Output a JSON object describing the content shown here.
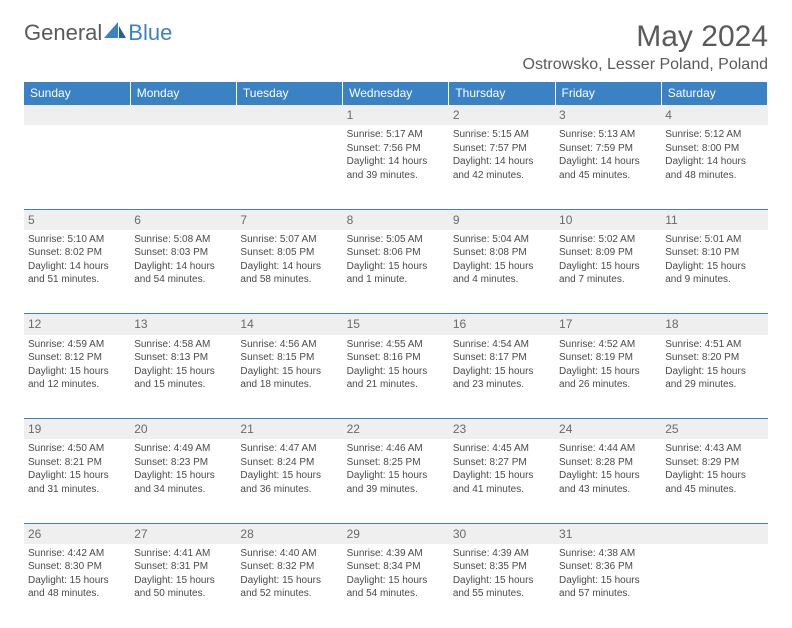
{
  "logo": {
    "word1": "General",
    "word2": "Blue"
  },
  "title": "May 2024",
  "location": "Ostrowsko, Lesser Poland, Poland",
  "colors": {
    "header_bg": "#3b82c4",
    "header_text": "#ffffff",
    "daynum_bg": "#efefef",
    "border": "#3b82c4",
    "body_text": "#4a4a4a",
    "title_text": "#5a5a5a"
  },
  "days_of_week": [
    "Sunday",
    "Monday",
    "Tuesday",
    "Wednesday",
    "Thursday",
    "Friday",
    "Saturday"
  ],
  "weeks": [
    [
      null,
      null,
      null,
      {
        "n": "1",
        "sunrise": "Sunrise: 5:17 AM",
        "sunset": "Sunset: 7:56 PM",
        "daylight": "Daylight: 14 hours and 39 minutes."
      },
      {
        "n": "2",
        "sunrise": "Sunrise: 5:15 AM",
        "sunset": "Sunset: 7:57 PM",
        "daylight": "Daylight: 14 hours and 42 minutes."
      },
      {
        "n": "3",
        "sunrise": "Sunrise: 5:13 AM",
        "sunset": "Sunset: 7:59 PM",
        "daylight": "Daylight: 14 hours and 45 minutes."
      },
      {
        "n": "4",
        "sunrise": "Sunrise: 5:12 AM",
        "sunset": "Sunset: 8:00 PM",
        "daylight": "Daylight: 14 hours and 48 minutes."
      }
    ],
    [
      {
        "n": "5",
        "sunrise": "Sunrise: 5:10 AM",
        "sunset": "Sunset: 8:02 PM",
        "daylight": "Daylight: 14 hours and 51 minutes."
      },
      {
        "n": "6",
        "sunrise": "Sunrise: 5:08 AM",
        "sunset": "Sunset: 8:03 PM",
        "daylight": "Daylight: 14 hours and 54 minutes."
      },
      {
        "n": "7",
        "sunrise": "Sunrise: 5:07 AM",
        "sunset": "Sunset: 8:05 PM",
        "daylight": "Daylight: 14 hours and 58 minutes."
      },
      {
        "n": "8",
        "sunrise": "Sunrise: 5:05 AM",
        "sunset": "Sunset: 8:06 PM",
        "daylight": "Daylight: 15 hours and 1 minute."
      },
      {
        "n": "9",
        "sunrise": "Sunrise: 5:04 AM",
        "sunset": "Sunset: 8:08 PM",
        "daylight": "Daylight: 15 hours and 4 minutes."
      },
      {
        "n": "10",
        "sunrise": "Sunrise: 5:02 AM",
        "sunset": "Sunset: 8:09 PM",
        "daylight": "Daylight: 15 hours and 7 minutes."
      },
      {
        "n": "11",
        "sunrise": "Sunrise: 5:01 AM",
        "sunset": "Sunset: 8:10 PM",
        "daylight": "Daylight: 15 hours and 9 minutes."
      }
    ],
    [
      {
        "n": "12",
        "sunrise": "Sunrise: 4:59 AM",
        "sunset": "Sunset: 8:12 PM",
        "daylight": "Daylight: 15 hours and 12 minutes."
      },
      {
        "n": "13",
        "sunrise": "Sunrise: 4:58 AM",
        "sunset": "Sunset: 8:13 PM",
        "daylight": "Daylight: 15 hours and 15 minutes."
      },
      {
        "n": "14",
        "sunrise": "Sunrise: 4:56 AM",
        "sunset": "Sunset: 8:15 PM",
        "daylight": "Daylight: 15 hours and 18 minutes."
      },
      {
        "n": "15",
        "sunrise": "Sunrise: 4:55 AM",
        "sunset": "Sunset: 8:16 PM",
        "daylight": "Daylight: 15 hours and 21 minutes."
      },
      {
        "n": "16",
        "sunrise": "Sunrise: 4:54 AM",
        "sunset": "Sunset: 8:17 PM",
        "daylight": "Daylight: 15 hours and 23 minutes."
      },
      {
        "n": "17",
        "sunrise": "Sunrise: 4:52 AM",
        "sunset": "Sunset: 8:19 PM",
        "daylight": "Daylight: 15 hours and 26 minutes."
      },
      {
        "n": "18",
        "sunrise": "Sunrise: 4:51 AM",
        "sunset": "Sunset: 8:20 PM",
        "daylight": "Daylight: 15 hours and 29 minutes."
      }
    ],
    [
      {
        "n": "19",
        "sunrise": "Sunrise: 4:50 AM",
        "sunset": "Sunset: 8:21 PM",
        "daylight": "Daylight: 15 hours and 31 minutes."
      },
      {
        "n": "20",
        "sunrise": "Sunrise: 4:49 AM",
        "sunset": "Sunset: 8:23 PM",
        "daylight": "Daylight: 15 hours and 34 minutes."
      },
      {
        "n": "21",
        "sunrise": "Sunrise: 4:47 AM",
        "sunset": "Sunset: 8:24 PM",
        "daylight": "Daylight: 15 hours and 36 minutes."
      },
      {
        "n": "22",
        "sunrise": "Sunrise: 4:46 AM",
        "sunset": "Sunset: 8:25 PM",
        "daylight": "Daylight: 15 hours and 39 minutes."
      },
      {
        "n": "23",
        "sunrise": "Sunrise: 4:45 AM",
        "sunset": "Sunset: 8:27 PM",
        "daylight": "Daylight: 15 hours and 41 minutes."
      },
      {
        "n": "24",
        "sunrise": "Sunrise: 4:44 AM",
        "sunset": "Sunset: 8:28 PM",
        "daylight": "Daylight: 15 hours and 43 minutes."
      },
      {
        "n": "25",
        "sunrise": "Sunrise: 4:43 AM",
        "sunset": "Sunset: 8:29 PM",
        "daylight": "Daylight: 15 hours and 45 minutes."
      }
    ],
    [
      {
        "n": "26",
        "sunrise": "Sunrise: 4:42 AM",
        "sunset": "Sunset: 8:30 PM",
        "daylight": "Daylight: 15 hours and 48 minutes."
      },
      {
        "n": "27",
        "sunrise": "Sunrise: 4:41 AM",
        "sunset": "Sunset: 8:31 PM",
        "daylight": "Daylight: 15 hours and 50 minutes."
      },
      {
        "n": "28",
        "sunrise": "Sunrise: 4:40 AM",
        "sunset": "Sunset: 8:32 PM",
        "daylight": "Daylight: 15 hours and 52 minutes."
      },
      {
        "n": "29",
        "sunrise": "Sunrise: 4:39 AM",
        "sunset": "Sunset: 8:34 PM",
        "daylight": "Daylight: 15 hours and 54 minutes."
      },
      {
        "n": "30",
        "sunrise": "Sunrise: 4:39 AM",
        "sunset": "Sunset: 8:35 PM",
        "daylight": "Daylight: 15 hours and 55 minutes."
      },
      {
        "n": "31",
        "sunrise": "Sunrise: 4:38 AM",
        "sunset": "Sunset: 8:36 PM",
        "daylight": "Daylight: 15 hours and 57 minutes."
      },
      null
    ]
  ]
}
